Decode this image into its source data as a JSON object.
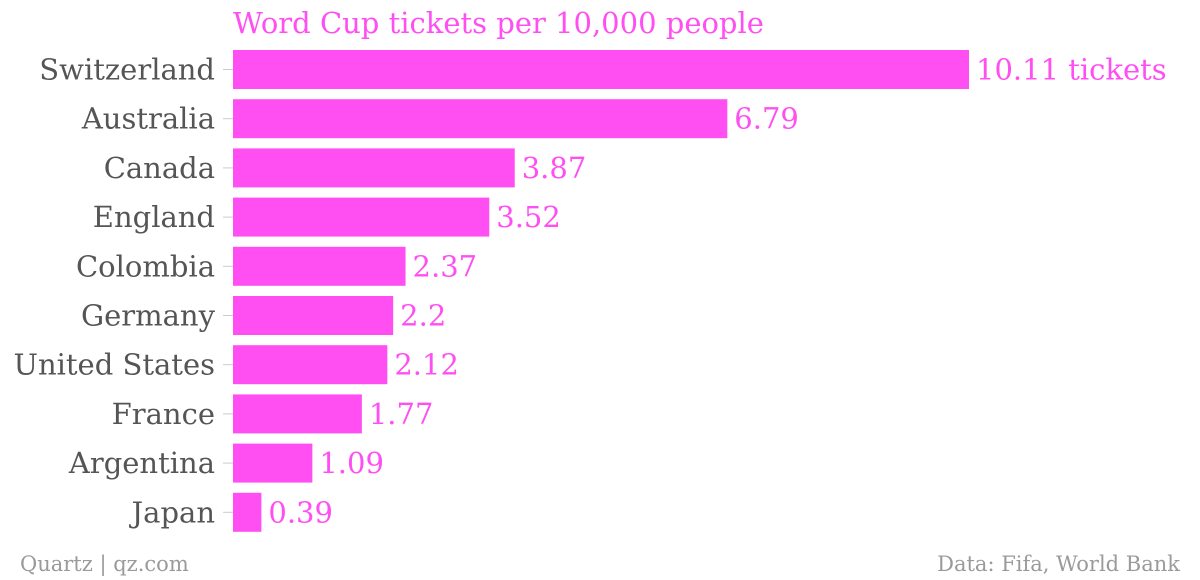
{
  "colors": {
    "bar": "#ff4ff2",
    "title": "#ff4ff2",
    "value_label": "#ff4ff2",
    "category_label": "#555555",
    "tick_line": "#cccccc",
    "footer": "#9a9a9a"
  },
  "chart_data": {
    "type": "bar",
    "orientation": "horizontal",
    "title": "Word Cup tickets per 10,000 people",
    "categories": [
      "Switzerland",
      "Australia",
      "Canada",
      "England",
      "Colombia",
      "Germany",
      "United States",
      "France",
      "Argentina",
      "Japan"
    ],
    "values": [
      10.11,
      6.79,
      3.87,
      3.52,
      2.37,
      2.2,
      2.12,
      1.77,
      1.09,
      0.39
    ],
    "value_labels": [
      "10.11 tickets",
      "6.79",
      "3.87",
      "3.52",
      "2.37",
      "2.2",
      "2.12",
      "1.77",
      "1.09",
      "0.39"
    ],
    "xlim": [
      0,
      10.11
    ],
    "grid": false,
    "legend": "none"
  },
  "footer": {
    "source_left": "Quartz | qz.com",
    "source_right": "Data: Fifa, World Bank"
  }
}
